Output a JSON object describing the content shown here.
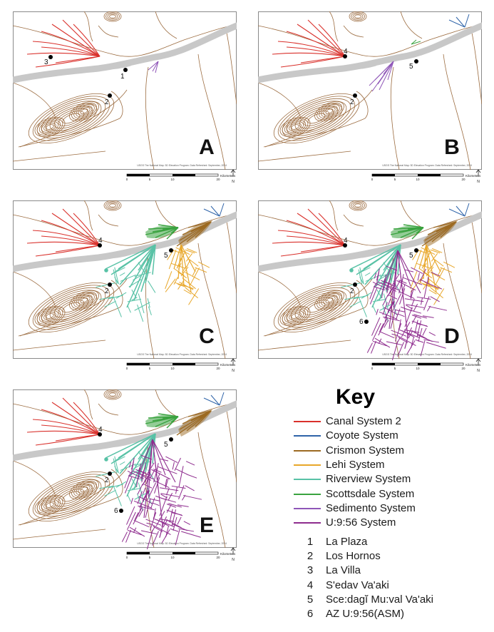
{
  "map": {
    "colors": {
      "contour": "#9b6b3f",
      "river": "#c8c8c8",
      "frame": "#8a8a8a",
      "site": "#000000"
    },
    "panels": [
      {
        "letter": "A",
        "systems": [
          "canal2",
          "sedimento_small"
        ],
        "sites": [
          "1",
          "2",
          "3"
        ]
      },
      {
        "letter": "B",
        "systems": [
          "canal2",
          "coyote",
          "scottsdale_small",
          "sedimento"
        ],
        "sites": [
          "2",
          "4",
          "5"
        ]
      },
      {
        "letter": "C",
        "systems": [
          "canal2",
          "coyote",
          "crismon",
          "lehi",
          "riverview",
          "scottsdale"
        ],
        "sites": [
          "2",
          "4",
          "5"
        ]
      },
      {
        "letter": "D",
        "systems": [
          "canal2",
          "coyote",
          "crismon",
          "lehi",
          "riverview",
          "scottsdale",
          "u956"
        ],
        "sites": [
          "2",
          "4",
          "5",
          "6"
        ]
      },
      {
        "letter": "E",
        "systems": [
          "canal2",
          "coyote",
          "crismon",
          "riverview",
          "scottsdale",
          "u956"
        ],
        "sites": [
          "2",
          "4",
          "5",
          "6"
        ]
      }
    ],
    "credit": "USGS The National Map: 3D Elevation Program. Data Refreshed: September, 2024",
    "scale_ticks": [
      "0",
      "5",
      "10",
      "20"
    ],
    "scale_unit": "Kilometers",
    "north": "N"
  },
  "key": {
    "title": "Key",
    "systems": [
      {
        "id": "canal2",
        "label": "Canal System 2",
        "color": "#d9302b"
      },
      {
        "id": "coyote",
        "label": "Coyote System",
        "color": "#2e63a8"
      },
      {
        "id": "crismon",
        "label": "Crismon System",
        "color": "#9c6a22"
      },
      {
        "id": "lehi",
        "label": "Lehi System",
        "color": "#e8a72a"
      },
      {
        "id": "riverview",
        "label": "Riverview System",
        "color": "#58c2a6"
      },
      {
        "id": "scottsdale",
        "label": "Scottsdale System",
        "color": "#3aa33f"
      },
      {
        "id": "sedimento",
        "label": "Sedimento System",
        "color": "#8f56b8"
      },
      {
        "id": "u956",
        "label": "U:9:56 System",
        "color": "#8e2c8e"
      }
    ],
    "sites": [
      {
        "num": "1",
        "name": "La Plaza"
      },
      {
        "num": "2",
        "name": "Los Hornos"
      },
      {
        "num": "3",
        "name": "La Villa"
      },
      {
        "num": "4",
        "name": "S'edav Va'aki"
      },
      {
        "num": "5",
        "name": "Sce:dagĭ Mu:val Va'aki"
      },
      {
        "num": "6",
        "name": "AZ U:9:56(ASM)"
      }
    ]
  }
}
